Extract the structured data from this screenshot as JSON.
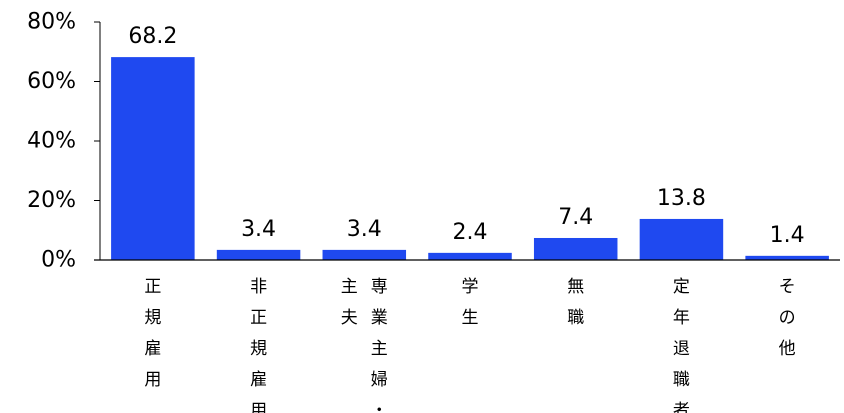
{
  "chart_data": {
    "type": "bar",
    "categories": [
      "正規雇用",
      "非正規雇用",
      "専業主婦・主夫",
      "学生",
      "無職",
      "定年退職者",
      "その他"
    ],
    "category_columns": [
      [
        [
          "正",
          "規",
          "雇",
          "用"
        ]
      ],
      [
        [
          "非",
          "正",
          "規",
          "雇",
          "用"
        ]
      ],
      [
        [
          "専",
          "業",
          "主",
          "婦",
          "・"
        ],
        [
          "主",
          "夫"
        ]
      ],
      [
        [
          "学",
          "生"
        ]
      ],
      [
        [
          "無",
          "職"
        ]
      ],
      [
        [
          "定",
          "年",
          "退",
          "職",
          "者"
        ]
      ],
      [
        [
          "そ",
          "の",
          "他"
        ]
      ]
    ],
    "values": [
      68.2,
      3.4,
      3.4,
      2.4,
      7.4,
      13.8,
      1.4
    ],
    "data_labels": [
      "68.2",
      "3.4",
      "3.4",
      "2.4",
      "7.4",
      "13.8",
      "1.4"
    ],
    "title": "",
    "xlabel": "",
    "ylabel": "",
    "ylim": [
      0,
      80
    ],
    "yticks": [
      0,
      20,
      40,
      60,
      80
    ],
    "ytick_labels": [
      "0%",
      "20%",
      "40%",
      "60%",
      "80%"
    ],
    "grid": false,
    "legend": "none",
    "bar_color": "#1f49f0"
  }
}
